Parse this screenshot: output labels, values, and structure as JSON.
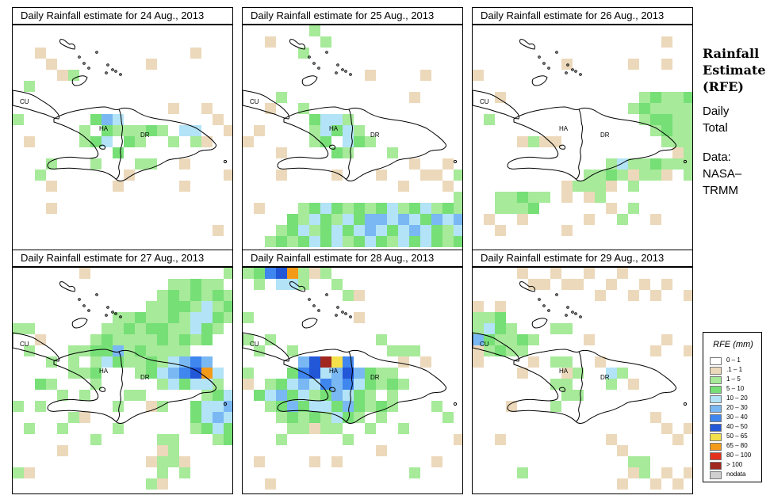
{
  "panels": [
    {
      "title": "Daily Rainfall estimate for  24 Aug., 2013"
    },
    {
      "title": "Daily Rainfall estimate for  25 Aug., 2013"
    },
    {
      "title": "Daily Rainfall estimate for  26 Aug., 2013"
    },
    {
      "title": "Daily Rainfall estimate for  27 Aug., 2013"
    },
    {
      "title": "Daily Rainfall estimate for  28 Aug., 2013"
    },
    {
      "title": "Daily Rainfall estimate for  29 Aug., 2013"
    }
  ],
  "map_labels": {
    "cuba": "CU",
    "haiti": "HA",
    "dr": "DR"
  },
  "side": {
    "title_lines": [
      "Rainfall",
      "Estimate",
      "(RFE)"
    ],
    "period_lines": [
      "Daily",
      "Total"
    ],
    "source_lines": [
      "Data:",
      "NASA–",
      "TRMM"
    ]
  },
  "legend": {
    "title": "RFE (mm)",
    "classes": [
      {
        "label": "0 – 1",
        "color": "#ffffff"
      },
      {
        "label": ".1 – 1",
        "color": "#ecd9bb"
      },
      {
        "label": "1 – 5",
        "color": "#a6ea9a"
      },
      {
        "label": "5 – 10",
        "color": "#76df76"
      },
      {
        "label": "10 – 20",
        "color": "#b3e3f7"
      },
      {
        "label": "20 – 30",
        "color": "#79b8f3"
      },
      {
        "label": "30 – 40",
        "color": "#3f86ee"
      },
      {
        "label": "40 – 50",
        "color": "#2257d8"
      },
      {
        "label": "50 – 65",
        "color": "#f3e04a"
      },
      {
        "label": "65 – 80",
        "color": "#f39a19"
      },
      {
        "label": "80 – 100",
        "color": "#e2301d"
      },
      {
        "label": "> 100",
        "color": "#a0281e"
      },
      {
        "label": "nodata",
        "color": "#cfcfcf"
      }
    ]
  }
}
